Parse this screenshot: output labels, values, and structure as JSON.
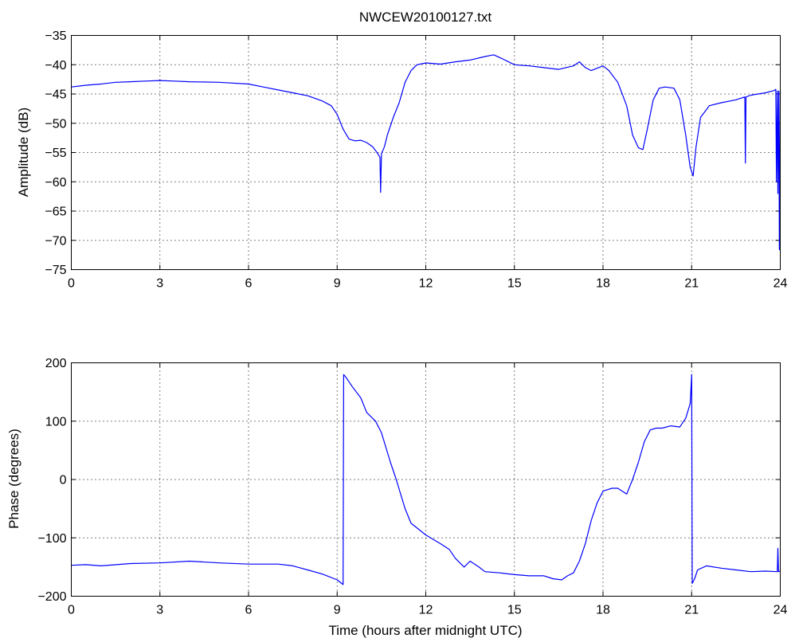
{
  "chart_data": [
    {
      "type": "line",
      "title": "NWCEW20100127.txt",
      "xlabel": "",
      "ylabel": "Amplitude (dB)",
      "xlim": [
        0,
        24
      ],
      "ylim": [
        -75,
        -35
      ],
      "xticks": [
        0,
        3,
        6,
        9,
        12,
        15,
        18,
        21,
        24
      ],
      "yticks": [
        -35,
        -40,
        -45,
        -50,
        -55,
        -60,
        -65,
        -70,
        -75
      ],
      "xtick_labels": [
        "0",
        "3",
        "6",
        "9",
        "12",
        "15",
        "18",
        "21",
        "24"
      ],
      "ytick_labels": [
        "−35",
        "−40",
        "−45",
        "−50",
        "−55",
        "−60",
        "−65",
        "−70",
        "−75"
      ],
      "grid": true,
      "color": "#0000ff",
      "series": [
        {
          "x": [
            0,
            0.5,
            1,
            1.5,
            2,
            2.5,
            3,
            3.5,
            4,
            5,
            6,
            6.5,
            7,
            7.5,
            8,
            8.5,
            8.8,
            9,
            9.2,
            9.4,
            9.6,
            9.8,
            10,
            10.2,
            10.35,
            10.45,
            10.47,
            10.5,
            10.6,
            10.7,
            10.9,
            11.1,
            11.3,
            11.5,
            11.7,
            12,
            12.5,
            13,
            13.5,
            14,
            14.3,
            14.6,
            15,
            15.5,
            16,
            16.5,
            17,
            17.2,
            17.4,
            17.6,
            18,
            18.2,
            18.5,
            18.8,
            19,
            19.2,
            19.35,
            19.5,
            19.7,
            19.9,
            20.1,
            20.4,
            20.6,
            20.8,
            20.95,
            21.05,
            21.15,
            21.3,
            21.6,
            22,
            22.5,
            22.8,
            22.82,
            22.84,
            23,
            23.5,
            23.8,
            23.85,
            23.87,
            23.9,
            23.92,
            23.95,
            23.97,
            24
          ],
          "y": [
            -43.8,
            -43.5,
            -43.3,
            -43,
            -42.9,
            -42.8,
            -42.7,
            -42.8,
            -42.9,
            -43,
            -43.3,
            -43.8,
            -44.3,
            -44.8,
            -45.3,
            -46.2,
            -47,
            -48.5,
            -51,
            -52.7,
            -53,
            -52.9,
            -53.3,
            -54,
            -55,
            -55.8,
            -61.8,
            -55.2,
            -54,
            -52,
            -49,
            -46.5,
            -43,
            -41,
            -40,
            -39.7,
            -39.9,
            -39.5,
            -39.2,
            -38.6,
            -38.3,
            -39,
            -40,
            -40.2,
            -40.5,
            -40.8,
            -40.2,
            -39.5,
            -40.5,
            -41,
            -40.2,
            -41,
            -43,
            -47,
            -52,
            -54.2,
            -54.5,
            -51,
            -46,
            -44,
            -43.8,
            -44,
            -46,
            -52,
            -57.5,
            -59,
            -54,
            -49,
            -47,
            -46.5,
            -46,
            -45.5,
            -56.8,
            -45.5,
            -45.2,
            -44.8,
            -44.4,
            -44.2,
            -60,
            -44.5,
            -62,
            -44.5,
            -71.6,
            -44.4
          ]
        }
      ]
    },
    {
      "type": "line",
      "title": "",
      "xlabel": "Time (hours after midnight UTC)",
      "ylabel": "Phase (degrees)",
      "xlim": [
        0,
        24
      ],
      "ylim": [
        -200,
        200
      ],
      "xticks": [
        0,
        3,
        6,
        9,
        12,
        15,
        18,
        21,
        24
      ],
      "yticks": [
        200,
        100,
        0,
        -100,
        -200
      ],
      "xtick_labels": [
        "0",
        "3",
        "6",
        "9",
        "12",
        "15",
        "18",
        "21",
        "24"
      ],
      "ytick_labels": [
        "200",
        "100",
        "0",
        "−100",
        "−200"
      ],
      "grid": true,
      "color": "#0000ff",
      "series": [
        {
          "x": [
            0,
            0.5,
            1,
            2,
            3,
            4,
            5,
            6,
            7,
            7.5,
            8,
            8.5,
            9,
            9.2,
            9.22,
            9.3,
            9.5,
            9.8,
            10,
            10.3,
            10.5,
            10.8,
            11,
            11.3,
            11.5,
            12,
            12.5,
            12.8,
            13,
            13.3,
            13.5,
            13.8,
            14,
            14.5,
            15,
            15.5,
            16,
            16.3,
            16.6,
            16.8,
            17,
            17.2,
            17.4,
            17.6,
            17.8,
            18,
            18.3,
            18.5,
            18.8,
            19,
            19.2,
            19.4,
            19.6,
            19.8,
            20,
            20.3,
            20.6,
            20.8,
            20.95,
            21.0,
            21.02,
            21.1,
            21.2,
            21.5,
            22,
            22.5,
            23,
            23.5,
            23.9,
            23.92,
            23.94,
            24
          ],
          "y": [
            -147,
            -146,
            -148,
            -144,
            -143,
            -140,
            -143,
            -145,
            -145,
            -148,
            -155,
            -162,
            -172,
            -180,
            180,
            175,
            160,
            140,
            115,
            100,
            80,
            30,
            0,
            -50,
            -75,
            -95,
            -110,
            -120,
            -135,
            -150,
            -140,
            -150,
            -158,
            -160,
            -163,
            -165,
            -165,
            -170,
            -172,
            -165,
            -160,
            -140,
            -110,
            -70,
            -40,
            -20,
            -15,
            -15,
            -25,
            0,
            30,
            65,
            85,
            88,
            88,
            92,
            90,
            105,
            130,
            180,
            -178,
            -170,
            -155,
            -148,
            -152,
            -155,
            -158,
            -157,
            -158,
            -118,
            -158,
            -157
          ]
        }
      ]
    }
  ]
}
